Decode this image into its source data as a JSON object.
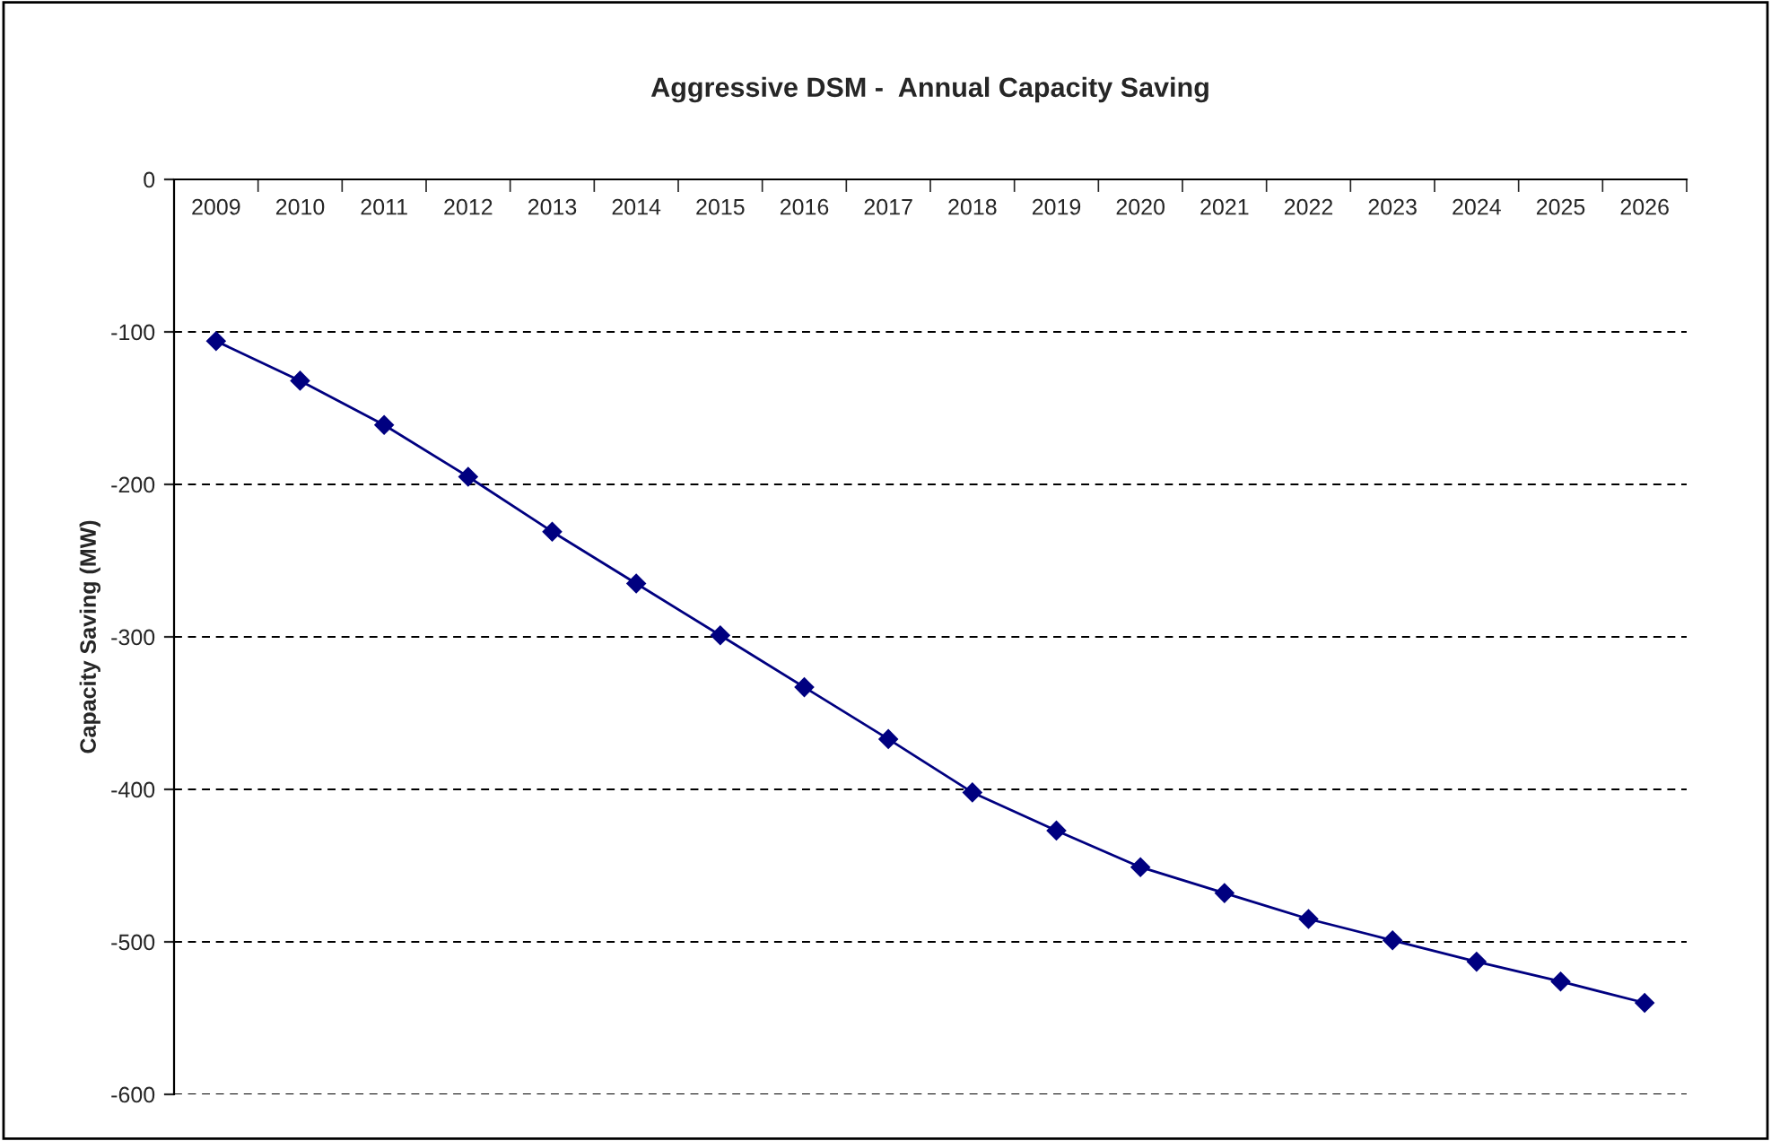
{
  "chart_data": {
    "type": "line",
    "title": "Aggressive DSM -  Annual Capacity Saving",
    "ylabel": "Capacity Saving (MW)",
    "categories": [
      "2009",
      "2010",
      "2011",
      "2012",
      "2013",
      "2014",
      "2015",
      "2016",
      "2017",
      "2018",
      "2019",
      "2020",
      "2021",
      "2022",
      "2023",
      "2024",
      "2025",
      "2026"
    ],
    "series": [
      {
        "color": "#000080",
        "values": [
          -106,
          -132,
          -161,
          -195,
          -231,
          -265,
          -299,
          -333,
          -367,
          -402,
          -427,
          -451,
          -468,
          -485,
          -499,
          -513,
          -526,
          -540
        ]
      }
    ],
    "ylim": [
      -600,
      0
    ],
    "yticks": [
      -600,
      -500,
      -400,
      -300,
      -200,
      -100,
      0
    ],
    "grid": "y",
    "marker": "diamond",
    "line_style": "solid"
  }
}
